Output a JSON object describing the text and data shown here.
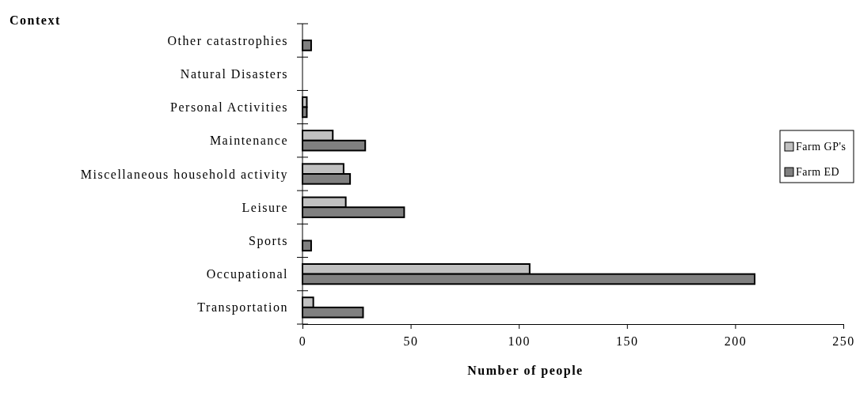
{
  "chart_data": {
    "type": "bar",
    "orientation": "horizontal",
    "xlabel": "Number of people",
    "ylabel": "Context",
    "categories": [
      "Other catastrophies",
      "Natural Disasters",
      "Personal Activities",
      "Maintenance",
      "Miscellaneous household activity",
      "Leisure",
      "Sports",
      "Occupational",
      "Transportation"
    ],
    "series": [
      {
        "name": "Farm GP's",
        "color": "#c0c0c0",
        "values": [
          null,
          null,
          2,
          14,
          19,
          20,
          null,
          105,
          5
        ]
      },
      {
        "name": "Farm ED",
        "color": "#808080",
        "values": [
          4,
          null,
          2,
          29,
          22,
          47,
          4,
          209,
          28
        ]
      }
    ],
    "xlim": [
      0,
      250
    ],
    "xticks": [
      0,
      50,
      100,
      150,
      200,
      250
    ],
    "legend": "right",
    "grid": false
  }
}
